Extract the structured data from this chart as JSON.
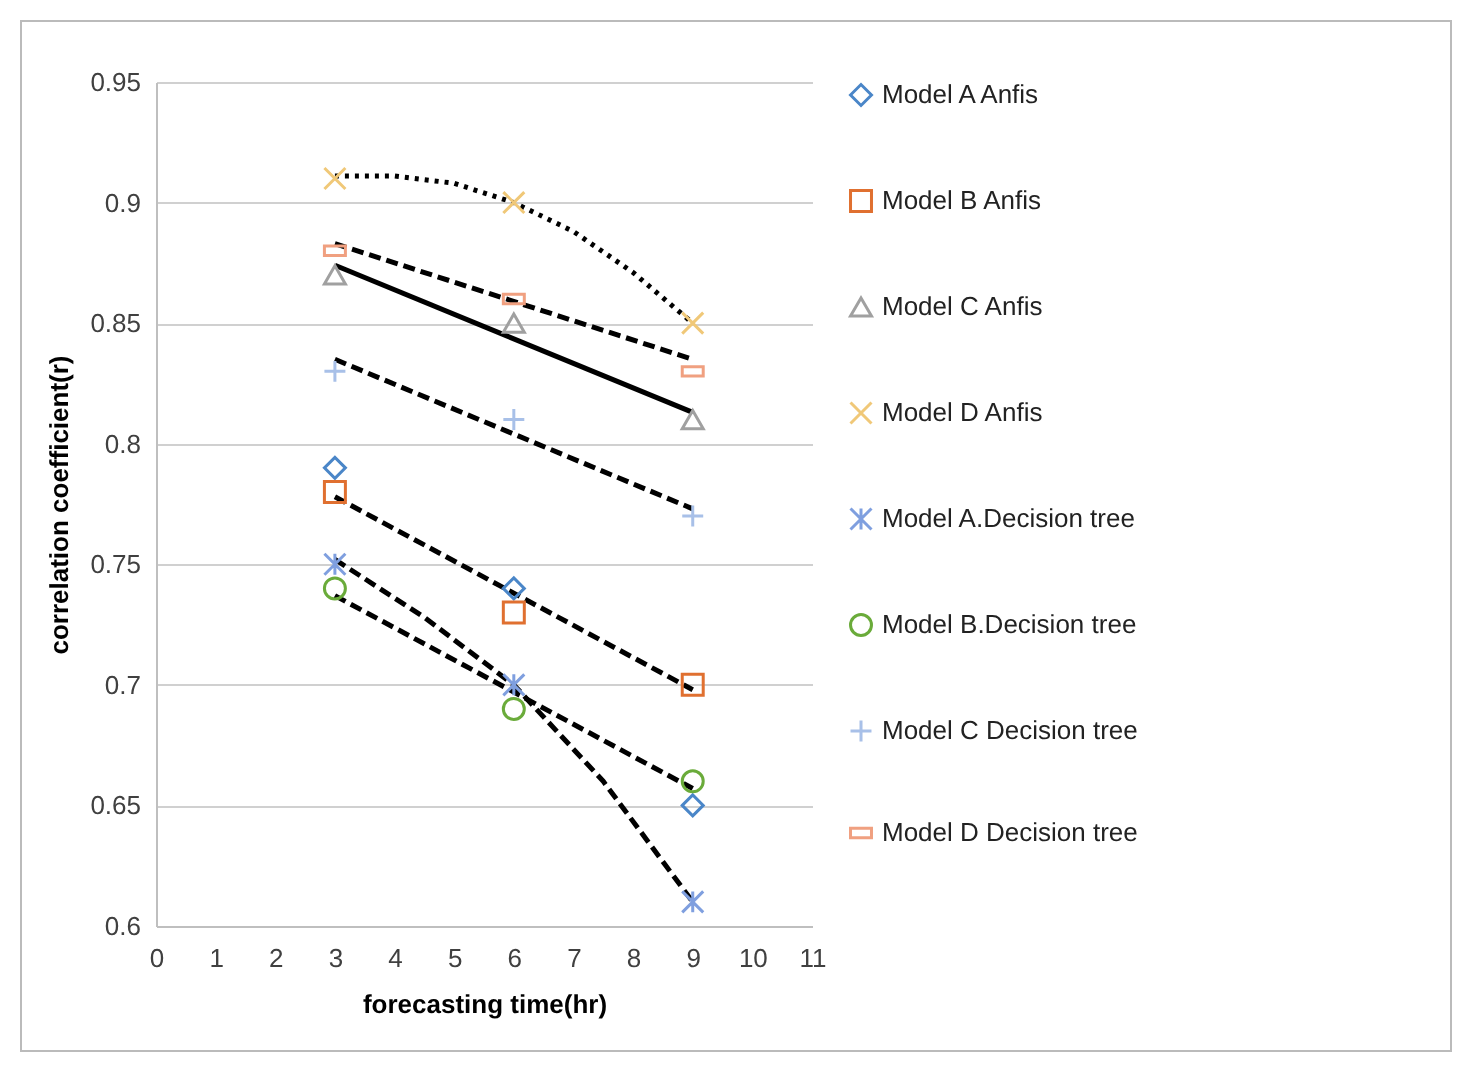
{
  "chart_data": {
    "type": "scatter",
    "xlabel": "forecasting time(hr)",
    "ylabel": "correlation coefficient(r)",
    "x": [
      3,
      6,
      9
    ],
    "xlim": [
      0,
      11
    ],
    "xticks": [
      0,
      1,
      2,
      3,
      4,
      5,
      6,
      7,
      8,
      9,
      10,
      11
    ],
    "ylim": [
      0.6,
      0.95
    ],
    "yticks": [
      0.6,
      0.65,
      0.7,
      0.75,
      0.8,
      0.85,
      0.9,
      0.95
    ],
    "grid": "y",
    "legend": "right",
    "series": [
      {
        "name": "Model A Anfis",
        "color": "#4a86c8",
        "marker": "diamond",
        "values": [
          0.79,
          0.74,
          0.65
        ]
      },
      {
        "name": "Model B Anfis",
        "color": "#e07030",
        "marker": "square",
        "values": [
          0.78,
          0.73,
          0.7
        ]
      },
      {
        "name": "Model C Anfis",
        "color": "#a0a0a0",
        "marker": "triangle",
        "values": [
          0.87,
          0.85,
          0.81
        ]
      },
      {
        "name": "Model D Anfis",
        "color": "#f0c878",
        "marker": "cross",
        "values": [
          0.91,
          0.9,
          0.85
        ]
      },
      {
        "name": "Model A.Decision tree",
        "color": "#7f9fdf",
        "marker": "cross",
        "values": [
          0.75,
          0.7,
          0.61
        ]
      },
      {
        "name": "Model B.Decision tree",
        "color": "#6aab3a",
        "marker": "circle",
        "values": [
          0.74,
          0.69,
          0.66
        ]
      },
      {
        "name": "Model C Decision tree",
        "color": "#a8c0e8",
        "marker": "plus",
        "values": [
          0.83,
          0.81,
          0.77
        ]
      },
      {
        "name": "Model D Decision tree",
        "color": "#f0a080",
        "values": [
          0.88,
          0.86,
          0.83
        ]
      },
      {
        "type": "line",
        "color": "#000000",
        "line_style": "dotted",
        "x": [
          3,
          4,
          5,
          6,
          7,
          8,
          9
        ],
        "values": [
          0.911,
          0.911,
          0.908,
          0.9,
          0.888,
          0.871,
          0.85
        ]
      },
      {
        "type": "line",
        "color": "#000000",
        "line_style": "dashed",
        "x": [
          3,
          9
        ],
        "values": [
          0.883,
          0.835
        ]
      },
      {
        "type": "line",
        "color": "#000000",
        "line_style": "solid",
        "x": [
          3,
          9
        ],
        "values": [
          0.874,
          0.813
        ]
      },
      {
        "type": "line",
        "color": "#000000",
        "line_style": "dashed",
        "x": [
          3,
          9
        ],
        "values": [
          0.835,
          0.773
        ]
      },
      {
        "type": "line",
        "color": "#000000",
        "line_style": "dashed",
        "x": [
          3,
          9
        ],
        "values": [
          0.778,
          0.698
        ]
      },
      {
        "type": "line",
        "color": "#000000",
        "line_style": "dashed",
        "x": [
          3,
          4.5,
          6,
          7.5,
          9
        ],
        "values": [
          0.752,
          0.728,
          0.7,
          0.66,
          0.61
        ]
      },
      {
        "type": "line",
        "color": "#000000",
        "line_style": "dashed",
        "x": [
          3,
          9
        ],
        "values": [
          0.737,
          0.657
        ]
      }
    ]
  }
}
